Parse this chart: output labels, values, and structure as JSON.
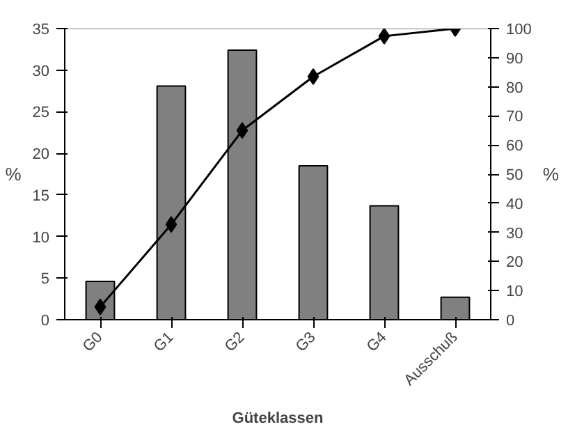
{
  "chart_data": {
    "type": "bar",
    "xlabel": "Güteklassen",
    "ylabel": "%",
    "y2label": "%",
    "categories": [
      "G0",
      "G1",
      "G2",
      "G3",
      "G4",
      "Ausschuß"
    ],
    "series": [
      {
        "color": "#808080",
        "values": [
          4.6,
          28.1,
          32.4,
          18.5,
          13.7,
          2.7
        ]
      },
      {
        "type": "line",
        "color": "#000000",
        "axis": "y2",
        "marker": "diamond",
        "values": [
          4.4,
          32.7,
          65.0,
          83.5,
          97.4,
          100
        ]
      }
    ],
    "ylim": [
      0,
      35
    ],
    "yticks": [
      0,
      5,
      10,
      15,
      20,
      25,
      30,
      35
    ],
    "y2lim": [
      0,
      100
    ],
    "y2ticks": [
      0,
      10,
      20,
      30,
      40,
      50,
      60,
      70,
      80,
      90,
      100
    ],
    "grid": false
  }
}
